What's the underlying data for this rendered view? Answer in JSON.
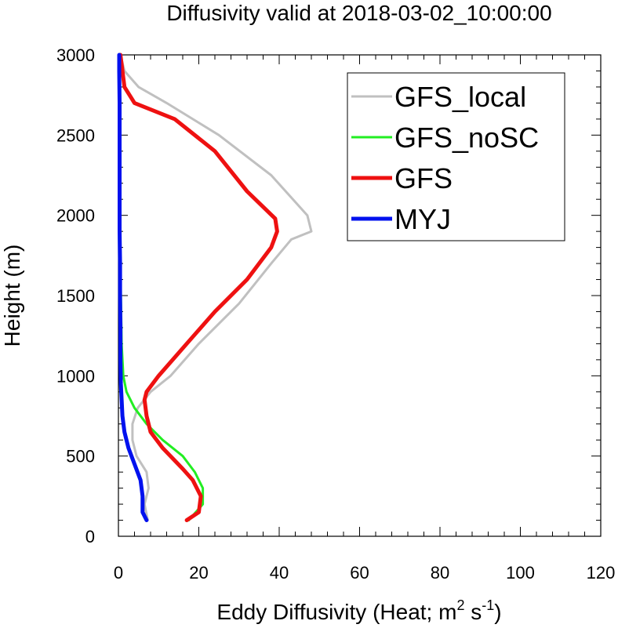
{
  "chart_data": {
    "type": "line",
    "title": "Diffusivity valid at 2018-03-02_10:00:00",
    "xlabel": {
      "main": "Eddy Diffusivity (Heat; m",
      "sup1": "2",
      "mid": " s",
      "sup2": "-1",
      "end": ")"
    },
    "ylabel": "Height (m)",
    "xlim": [
      0,
      120
    ],
    "ylim": [
      0,
      3000
    ],
    "xticks": [
      0,
      20,
      40,
      60,
      80,
      100,
      120
    ],
    "xtick_labels": [
      "0",
      "20",
      "40",
      "60",
      "80",
      "100",
      "120"
    ],
    "yticks": [
      0,
      500,
      1000,
      1500,
      2000,
      2500,
      3000
    ],
    "ytick_labels": [
      "0",
      "500",
      "1000",
      "1500",
      "2000",
      "2500",
      "3000"
    ],
    "legend_position": "top-right",
    "series": [
      {
        "name": "GFS_local",
        "color": "#c0c0c0",
        "x": [
          7.3,
          6.5,
          7.5,
          7.0,
          4.5,
          3.5,
          3.5,
          4.8,
          8,
          13,
          20,
          30,
          38,
          43,
          48,
          47,
          38,
          25,
          12,
          5,
          1.5,
          0.5
        ],
        "y": [
          100,
          200,
          300,
          400,
          500,
          600,
          700,
          800,
          900,
          1000,
          1200,
          1450,
          1700,
          1850,
          1900,
          2000,
          2250,
          2500,
          2700,
          2800,
          2900,
          3000
        ]
      },
      {
        "name": "GFS_noSC",
        "color": "#22ee22",
        "x": [
          17.5,
          21,
          21,
          19,
          16,
          11,
          7,
          4,
          2,
          1.2,
          0.8,
          0.6,
          0.5,
          0.4,
          0.4,
          0.3,
          0.3,
          0.3,
          0.3,
          0.2,
          0.2
        ],
        "y": [
          100,
          200,
          300,
          400,
          500,
          600,
          700,
          800,
          900,
          1000,
          1200,
          1500,
          1700,
          1900,
          2000,
          2200,
          2500,
          2700,
          2800,
          2900,
          3000
        ]
      },
      {
        "name": "GFS",
        "color": "#ee1111",
        "x": [
          17,
          20,
          20.5,
          18.5,
          16,
          11,
          8,
          7,
          6.5,
          7,
          10,
          17,
          24,
          32,
          38,
          39.5,
          39,
          32,
          24,
          14,
          4,
          1.5,
          0.5
        ],
        "y": [
          100,
          150,
          250,
          350,
          420,
          550,
          650,
          750,
          850,
          900,
          1000,
          1200,
          1400,
          1600,
          1800,
          1900,
          1980,
          2150,
          2400,
          2600,
          2700,
          2800,
          3000
        ]
      },
      {
        "name": "MYJ",
        "color": "#0011ee",
        "x": [
          7,
          6,
          6,
          5.5,
          4,
          2.5,
          1.5,
          1,
          0.8,
          0.6,
          0.5,
          0.5,
          0.4,
          0.4,
          0.3,
          0.3,
          0.3,
          0.3,
          0.2,
          0.2
        ],
        "y": [
          100,
          150,
          250,
          350,
          450,
          550,
          650,
          750,
          850,
          950,
          1100,
          1300,
          1500,
          1700,
          1900,
          2100,
          2400,
          2700,
          2900,
          3000
        ]
      }
    ]
  }
}
